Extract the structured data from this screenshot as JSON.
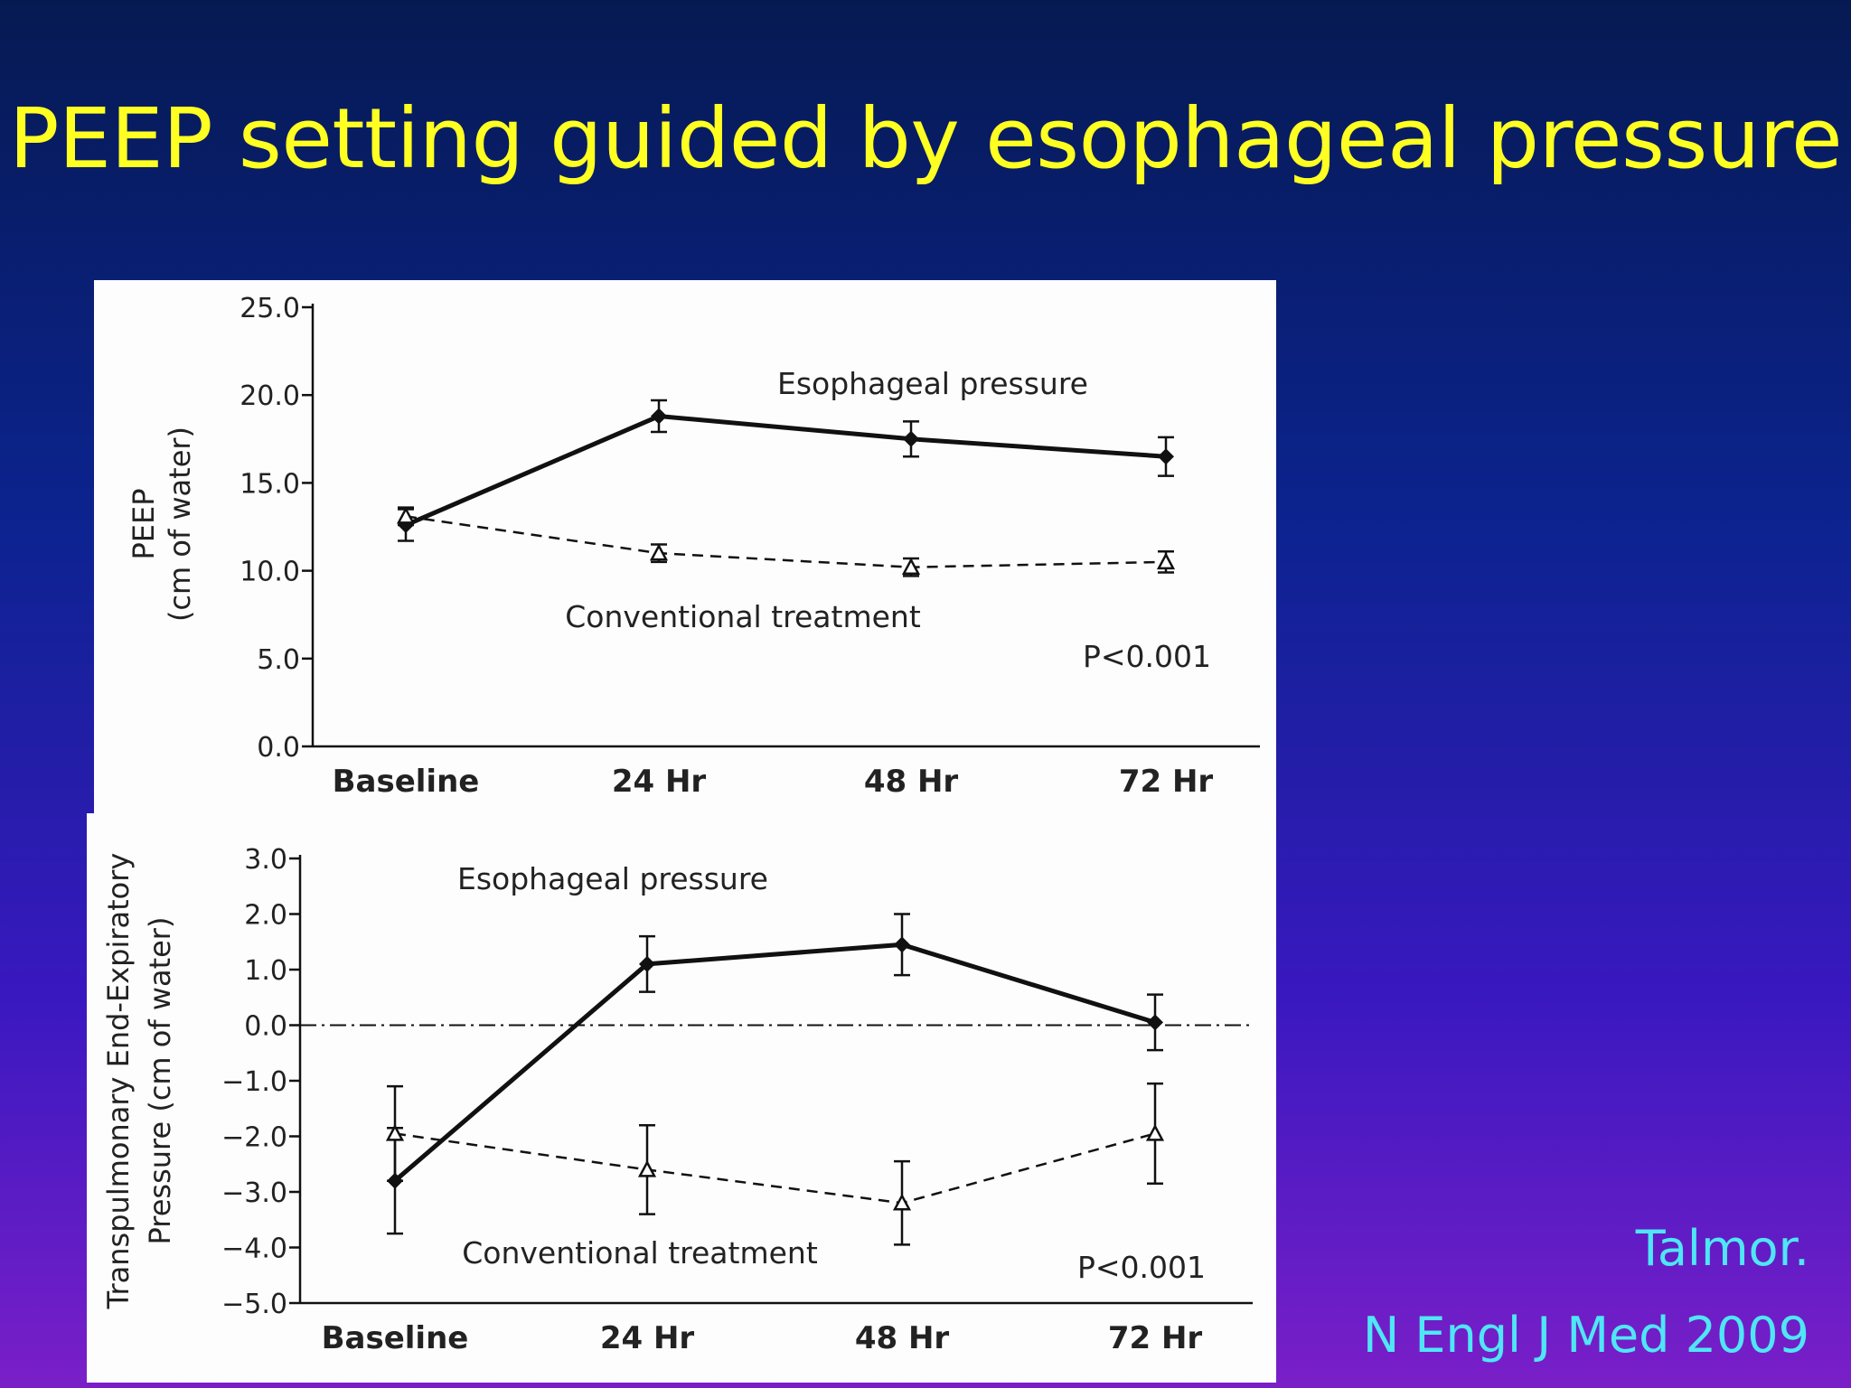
{
  "slide": {
    "title": "PEEP setting guided by esophageal pressure",
    "citation_author": "Talmor.",
    "citation_journal": "N Engl J Med 2009"
  },
  "colors": {
    "title": "#ffff22",
    "citation": "#4fe6f6",
    "panel": "#fdfdfd",
    "ink": "#111111"
  },
  "chart_data": [
    {
      "type": "line",
      "ylabel": [
        "PEEP",
        "(cm of water)"
      ],
      "xlabel": "",
      "categories": [
        "Baseline",
        "24 Hr",
        "48 Hr",
        "72 Hr"
      ],
      "ylim": [
        0,
        25
      ],
      "yticks": [
        0,
        5,
        10,
        15,
        20,
        25
      ],
      "ytick_labels": [
        "0.0",
        "5.0",
        "10.0",
        "15.0",
        "20.0",
        "25.0"
      ],
      "zero_line": false,
      "series": [
        {
          "name": "Esophageal pressure",
          "style": "solid",
          "marker": "filled-diamond",
          "values": [
            12.6,
            18.8,
            17.5,
            16.5
          ],
          "error": [
            0.9,
            0.9,
            1.0,
            1.1
          ]
        },
        {
          "name": "Conventional treatment",
          "style": "dashed",
          "marker": "open-triangle",
          "values": [
            13.1,
            11.0,
            10.2,
            10.5
          ],
          "error": [
            0.5,
            0.5,
            0.5,
            0.6
          ]
        }
      ],
      "annotations": [
        "Esophageal pressure",
        "Conventional treatment",
        "P<0.001"
      ]
    },
    {
      "type": "line",
      "ylabel": [
        "Transpulmonary End-Expiratory",
        "Pressure (cm of water)"
      ],
      "xlabel": "",
      "categories": [
        "Baseline",
        "24 Hr",
        "48 Hr",
        "72 Hr"
      ],
      "ylim": [
        -5,
        3
      ],
      "yticks": [
        -5,
        -4,
        -3,
        -2,
        -1,
        0,
        1,
        2,
        3
      ],
      "ytick_labels": [
        "−5.0",
        "−4.0",
        "−3.0",
        "−2.0",
        "−1.0",
        "0.0",
        "1.0",
        "2.0",
        "3.0"
      ],
      "zero_line": true,
      "series": [
        {
          "name": "Esophageal pressure",
          "style": "solid",
          "marker": "filled-diamond",
          "values": [
            -2.8,
            1.1,
            1.45,
            0.05
          ],
          "error": [
            0.95,
            0.5,
            0.55,
            0.5
          ]
        },
        {
          "name": "Conventional treatment",
          "style": "dashed",
          "marker": "open-triangle",
          "values": [
            -1.95,
            -2.6,
            -3.2,
            -1.95
          ],
          "error": [
            0.85,
            0.8,
            0.75,
            0.9
          ]
        }
      ],
      "annotations": [
        "Esophageal pressure",
        "Conventional treatment",
        "P<0.001"
      ]
    }
  ]
}
